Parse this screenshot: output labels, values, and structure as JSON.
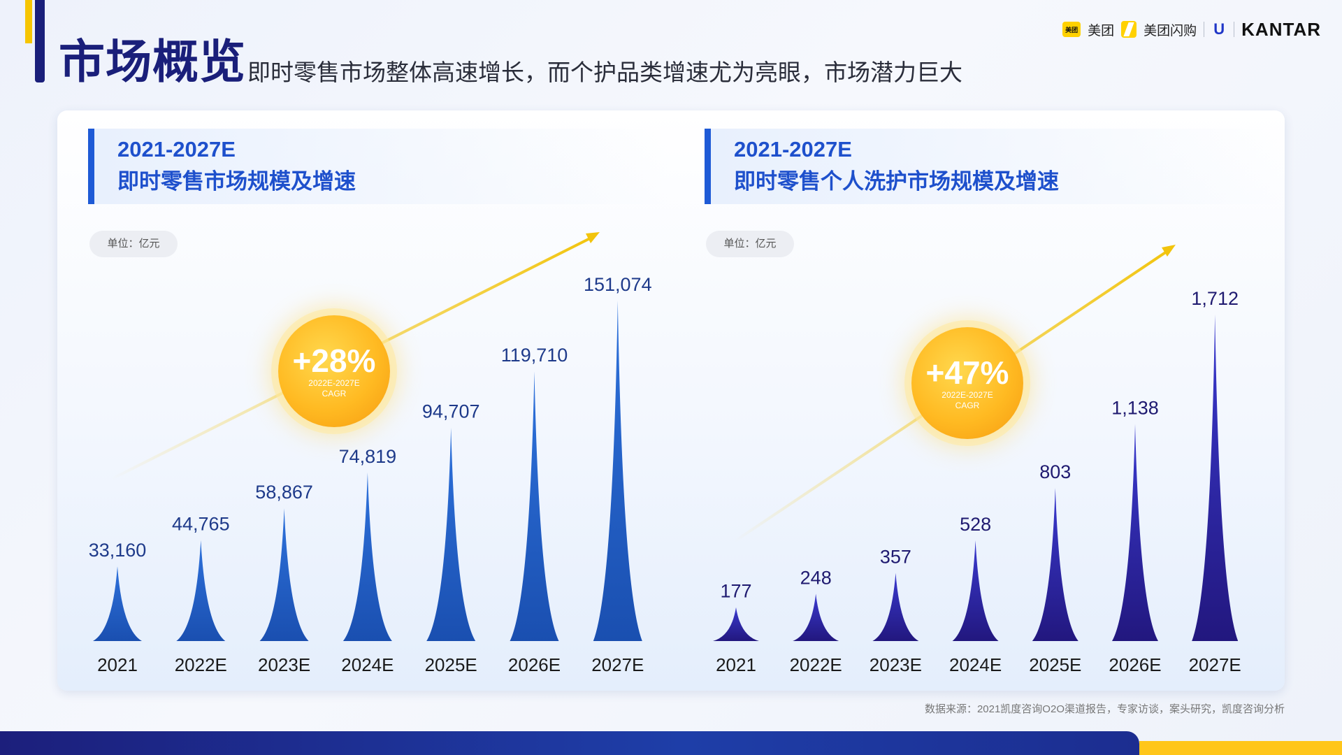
{
  "page": {
    "title": "市场概览",
    "subtitle": "即时零售市场整体高速增长，而个护品类增速尤为亮眼，市场潜力巨大",
    "source": "数据来源：2021凯度咨询O2O渠道报告，专家访谈，案头研究，凯度咨询分析"
  },
  "logos": {
    "meituan": "美团",
    "meituan_mark": "美团",
    "shangou": "美团闪购",
    "unilever_mark": "U",
    "kantar": "KANTAR"
  },
  "colors": {
    "title_navy": "#1a1f7a",
    "header_blue": "#1e50cc",
    "bar_blue_top": "#2e72dc",
    "bar_blue_bottom": "#1a4fb0",
    "bar_indigo_top": "#3a3ad0",
    "bar_indigo_bottom": "#22177e",
    "arrow_yellow": "#f2c40c",
    "bubble_orange": "#ffb522"
  },
  "chart_data": [
    {
      "type": "bar",
      "title": "2021-2027E",
      "subtitle": "即时零售市场规模及增速",
      "unit": "单位：亿元",
      "categories": [
        "2021",
        "2022E",
        "2023E",
        "2024E",
        "2025E",
        "2026E",
        "2027E"
      ],
      "values": [
        33160,
        44765,
        58867,
        74819,
        94707,
        119710,
        151074
      ],
      "value_labels": [
        "33,160",
        "44,765",
        "58,867",
        "74,819",
        "94,707",
        "119,710",
        "151,074"
      ],
      "cagr": {
        "value": "+28%",
        "period": "2022E-2027E",
        "label": "CAGR"
      }
    },
    {
      "type": "bar",
      "title": "2021-2027E",
      "subtitle": "即时零售个人洗护市场规模及增速",
      "unit": "单位：亿元",
      "categories": [
        "2021",
        "2022E",
        "2023E",
        "2024E",
        "2025E",
        "2026E",
        "2027E"
      ],
      "values": [
        177,
        248,
        357,
        528,
        803,
        1138,
        1712
      ],
      "value_labels": [
        "177",
        "248",
        "357",
        "528",
        "803",
        "1,138",
        "1,712"
      ],
      "cagr": {
        "value": "+47%",
        "period": "2022E-2027E",
        "label": "CAGR"
      }
    }
  ]
}
